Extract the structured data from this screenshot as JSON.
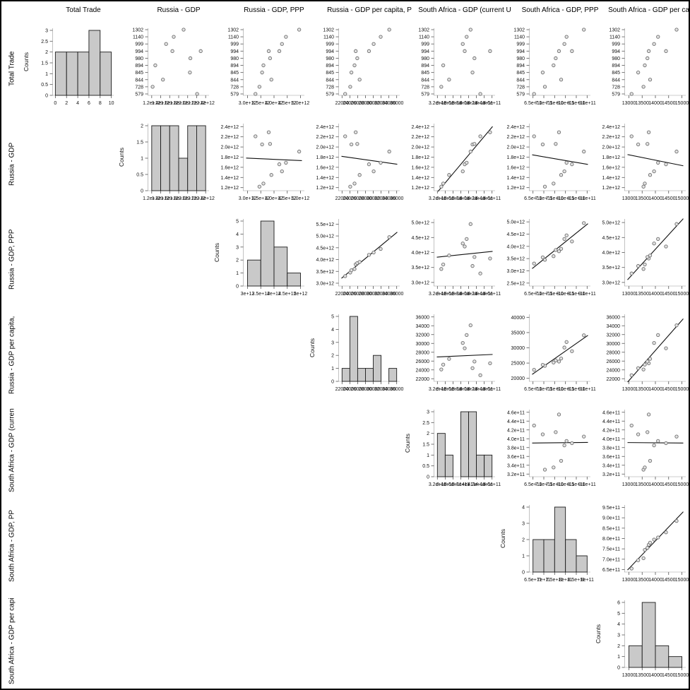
{
  "chart_data": {
    "type": "scatter_matrix",
    "counts_label": "Counts",
    "background": "#ffffff",
    "border_color": "#000000",
    "layout": {
      "margin_left": 28,
      "margin_top": 28,
      "cell_size": 135,
      "grid": "7x7 upper triangle, histograms on diagonal"
    },
    "variables": [
      {
        "key": "total_trade",
        "title": "Total Trade",
        "row_label": "Total Trade"
      },
      {
        "key": "ru_gdp",
        "title": "Russia - GDP",
        "row_label": "Russia - GDP"
      },
      {
        "key": "ru_gdp_ppp",
        "title": "Russia - GDP, PPP",
        "row_label": "Russia - GDP, PPP"
      },
      {
        "key": "ru_gdp_pc",
        "title": "Russia - GDP per capita, P",
        "row_label": "Russia - GDP per capita,"
      },
      {
        "key": "sa_gdp",
        "title": "South Africa - GDP (current U",
        "row_label": "South Africa - GDP (curren"
      },
      {
        "key": "sa_gdp_ppp",
        "title": "South Africa - GDP, PPP",
        "row_label": "South Africa - GDP, PP"
      },
      {
        "key": "sa_gdp_pc",
        "title": "South Africa - GDP per capita,",
        "row_label": "South Africa - GDP per capi"
      }
    ],
    "row1_category_ticks": [
      "1302",
      "1140",
      "999",
      "994",
      "980",
      "894",
      "845",
      "844",
      "728",
      "579"
    ],
    "observations": {
      "total_trade": [
        579,
        728,
        845,
        894,
        994,
        980,
        844,
        994,
        999,
        1140,
        1302
      ],
      "ru_gdp": [
        2210000000000.0,
        1220000000000.0,
        2050000000000.0,
        1280000000000.0,
        2290000000000.0,
        2060000000000.0,
        1450000000000.0,
        1660000000000.0,
        1520000000000.0,
        1690000000000.0,
        1910000000000.0
      ],
      "ru_gdp_ppp": [
        3300000000000.0,
        3450000000000.0,
        3550000000000.0,
        3600000000000.0,
        3800000000000.0,
        3850000000000.0,
        3900000000000.0,
        4200000000000.0,
        4300000000000.0,
        4450000000000.0,
        4950000000000.0
      ],
      "ru_gdp_pc": [
        22800,
        24100,
        24400,
        25200,
        25500,
        25900,
        26500,
        28900,
        30100,
        31900,
        34100
      ],
      "sa_gdp": [
        430000000000.0,
        330000000000.0,
        410000000000.0,
        335000000000.0,
        455000000000.0,
        415000000000.0,
        350000000000.0,
        390000000000.0,
        385000000000.0,
        395000000000.0,
        405000000000.0
      ],
      "sa_gdp_ppp": [
        655000000000.0,
        705000000000.0,
        695000000000.0,
        745000000000.0,
        770000000000.0,
        755000000000.0,
        780000000000.0,
        830000000000.0,
        795000000000.0,
        805000000000.0,
        885000000000.0
      ],
      "sa_gdp_pc": [
        13100,
        13550,
        13350,
        13600,
        13750,
        13700,
        13800,
        14400,
        13950,
        14100,
        14800
      ]
    },
    "axes": {
      "total_trade": {
        "x_range": [
          -0.3,
          10.3
        ],
        "x_tick_values": [
          0,
          2,
          4,
          6,
          8,
          10
        ],
        "x_tick_labels_scatter": [
          "0",
          "2",
          "4",
          "6",
          "8",
          "10"
        ],
        "x_tick_labels_hist": [
          "0",
          "2",
          "4",
          "6",
          "8",
          "10"
        ]
      },
      "ru_gdp": {
        "x_range": [
          1140000000000.0,
          2460000000000.0
        ],
        "x_tick_values": [
          1200000000000.0,
          1400000000000.0,
          1600000000000.0,
          1800000000000.0,
          2000000000000.0,
          2200000000000.0,
          2400000000000.0
        ],
        "x_tick_labels_scatter": [
          "1.2e+12",
          "1.4e+12",
          "1.6e+12",
          "1.8e+12",
          "2.0e+12",
          "2.2e+12",
          "2.4e+12"
        ],
        "x_tick_labels_hist": [
          "1.2e+12",
          "1.4e+12",
          "1.6e+12",
          "1.8e+12",
          "2.0e+12",
          "2.2e+12",
          "2.4e+12"
        ]
      },
      "ru_gdp_ppp": {
        "x_range": [
          2880000000000.0,
          5120000000000.0
        ],
        "x_tick_values": [
          3000000000000.0,
          3500000000000.0,
          4000000000000.0,
          4500000000000.0,
          5000000000000.0
        ],
        "x_tick_labels_scatter": [
          "3.0e+12",
          "3.5e+12",
          "4.0e+12",
          "4.5e+12",
          "5.0e+12"
        ],
        "x_tick_labels_hist": [
          "3e+12",
          "3.5e+12",
          "4e+12",
          "4.5e+12",
          "5e+12"
        ]
      },
      "ru_gdp_pc": {
        "x_range": [
          21400,
          36600
        ],
        "x_tick_values": [
          22000,
          24000,
          26000,
          28000,
          30000,
          32000,
          34000,
          36000
        ],
        "x_tick_labels_scatter": [
          "22000",
          "24000",
          "26000",
          "28000",
          "30000",
          "32000",
          "34000",
          "36000"
        ],
        "x_tick_labels_hist": [
          "22000",
          "24000",
          "26000",
          "28000",
          "30000",
          "32000",
          "34000",
          "36000"
        ]
      },
      "sa_gdp": {
        "x_range": [
          314000000000.0,
          466000000000.0
        ],
        "x_tick_values": [
          320000000000.0,
          340000000000.0,
          360000000000.0,
          380000000000.0,
          400000000000.0,
          420000000000.0,
          440000000000.0,
          460000000000.0
        ],
        "x_tick_labels_scatter": [
          "3.2e+11",
          "3.4e+11",
          "3.6e+11",
          "3.8e+11",
          "4.0e+11",
          "4.2e+11",
          "4.4e+11",
          "4.6e+11"
        ],
        "x_tick_labels_hist": [
          "3.2e+11",
          "3.4e+11",
          "3.6e+11",
          "3.8e+11",
          "4e+11",
          "4.2e+11",
          "4.4e+11",
          "4.6e+11"
        ]
      },
      "sa_gdp_ppp": {
        "x_range": [
          638000000000.0,
          912000000000.0
        ],
        "x_tick_values": [
          650000000000.0,
          700000000000.0,
          750000000000.0,
          800000000000.0,
          850000000000.0,
          900000000000.0
        ],
        "x_tick_labels_scatter": [
          "6.5e+11",
          "7.0e+11",
          "7.5e+11",
          "8.0e+11",
          "8.5e+11",
          "9.0e+11"
        ],
        "x_tick_labels_hist": [
          "6.5e+11",
          "7e+11",
          "7.5e+11",
          "8e+11",
          "8.5e+11",
          "9e+11"
        ]
      },
      "sa_gdp_pc": {
        "x_range": [
          12880,
          15120
        ],
        "x_tick_values": [
          13000,
          13500,
          14000,
          14500,
          15000
        ],
        "x_tick_labels_scatter": [
          "13000",
          "13500",
          "14000",
          "14500",
          "15000"
        ],
        "x_tick_labels_hist": [
          "13000",
          "13500",
          "14000",
          "14500",
          "15000"
        ]
      }
    },
    "row_y_axes": {
      "2": {
        "range": [
          1140000000000.0,
          2460000000000.0
        ],
        "tick_values": [
          2400000000000.0,
          2200000000000.0,
          2000000000000.0,
          1800000000000.0,
          1600000000000.0,
          1400000000000.0,
          1200000000000.0
        ],
        "tick_labels": [
          "2.4e+12",
          "2.2e+12",
          "2.0e+12",
          "1.8e+12",
          "1.6e+12",
          "1.4e+12",
          "1.2e+12"
        ]
      },
      "3": {
        "range": [
          2880000000000.0,
          5120000000000.0
        ],
        "tick_values": [
          5000000000000.0,
          4500000000000.0,
          4000000000000.0,
          3500000000000.0,
          3000000000000.0
        ],
        "tick_labels": [
          "5.0e+12",
          "4.5e+12",
          "4.0e+12",
          "3.5e+12",
          "3.0e+12"
        ]
      },
      "4": {
        "range": [
          21400,
          36600
        ],
        "tick_values": [
          36000,
          34000,
          32000,
          30000,
          28000,
          26000,
          24000,
          22000
        ],
        "tick_labels": [
          "36000",
          "34000",
          "32000",
          "30000",
          "28000",
          "26000",
          "24000",
          "22000"
        ]
      },
      "5": {
        "range": [
          314000000000.0,
          466000000000.0
        ],
        "tick_values": [
          460000000000.0,
          440000000000.0,
          420000000000.0,
          400000000000.0,
          380000000000.0,
          360000000000.0,
          340000000000.0,
          320000000000.0
        ],
        "tick_labels": [
          "4.6e+11",
          "4.4e+11",
          "4.2e+11",
          "4.0e+11",
          "3.8e+11",
          "3.6e+11",
          "3.4e+11",
          "3.2e+11"
        ]
      },
      "6": {
        "range": [
          638000000000.0,
          962000000000.0
        ],
        "tick_values": [
          950000000000.0,
          900000000000.0,
          850000000000.0,
          800000000000.0,
          750000000000.0,
          700000000000.0,
          650000000000.0
        ],
        "tick_labels": [
          "9.5e+11",
          "9.0e+11",
          "8.5e+11",
          "8.0e+11",
          "7.5e+11",
          "7.0e+11",
          "6.5e+11"
        ]
      }
    },
    "y_axis_overrides": {
      "3,4": {
        "range": [
          2880000000000.0,
          5720000000000.0
        ],
        "tick_values": [
          5500000000000.0,
          5000000000000.0,
          4500000000000.0,
          4000000000000.0,
          3500000000000.0,
          3000000000000.0
        ],
        "tick_labels": [
          "5.5e+12",
          "5.0e+12",
          "4.5e+12",
          "4.0e+12",
          "3.5e+12",
          "3.0e+12"
        ]
      },
      "3,6": {
        "range": [
          2380000000000.0,
          5120000000000.0
        ],
        "tick_values": [
          5000000000000.0,
          4500000000000.0,
          4000000000000.0,
          3500000000000.0,
          3000000000000.0,
          2500000000000.0
        ],
        "tick_labels": [
          "5.0e+12",
          "4.5e+12",
          "4.0e+12",
          "3.5e+12",
          "3.0e+12",
          "2.5e+12"
        ]
      },
      "4,6": {
        "range": [
          19000,
          41000
        ],
        "tick_values": [
          40000,
          35000,
          30000,
          25000,
          20000
        ],
        "tick_labels": [
          "40000",
          "35000",
          "30000",
          "25000",
          "20000"
        ]
      }
    },
    "histograms": {
      "total_trade": {
        "bin_start": 0,
        "bin_width": 2,
        "counts": [
          2,
          2,
          2,
          3,
          2
        ],
        "y_max": 3,
        "y_tick_values": [
          3,
          2.5,
          2,
          1.5,
          1,
          0.5,
          0
        ],
        "y_tick_labels": [
          "3",
          "2.5",
          "2",
          "1.5",
          "1",
          "0.5",
          "0"
        ]
      },
      "ru_gdp": {
        "bin_start": 1200000000000.0,
        "bin_width": 200000000000.0,
        "counts": [
          2,
          2,
          2,
          1,
          2,
          2
        ],
        "y_max": 2,
        "y_tick_values": [
          2,
          1.5,
          1,
          0.5,
          0
        ],
        "y_tick_labels": [
          "2",
          "1.5",
          "1",
          "0.5",
          "0"
        ]
      },
      "ru_gdp_ppp": {
        "bin_start": 3000000000000.0,
        "bin_width": 500000000000.0,
        "counts": [
          2,
          5,
          3,
          1
        ],
        "y_max": 5,
        "y_tick_values": [
          5,
          4,
          3,
          2,
          1,
          0
        ],
        "y_tick_labels": [
          "5",
          "4",
          "3",
          "2",
          "1",
          "0"
        ]
      },
      "ru_gdp_pc": {
        "bin_start": 22000,
        "bin_width": 2000,
        "counts": [
          1,
          5,
          1,
          1,
          2,
          0,
          1
        ],
        "y_max": 5,
        "y_tick_values": [
          5,
          4,
          3,
          2,
          1,
          0
        ],
        "y_tick_labels": [
          "5",
          "4",
          "3",
          "2",
          "1",
          "0"
        ]
      },
      "sa_gdp": {
        "bin_start": 320000000000.0,
        "bin_width": 20000000000.0,
        "counts": [
          2,
          1,
          0,
          3,
          3,
          1,
          1
        ],
        "y_max": 3,
        "y_tick_values": [
          3,
          2.5,
          2,
          1.5,
          1,
          0.5,
          0
        ],
        "y_tick_labels": [
          "3",
          "2.5",
          "2",
          "1.5",
          "1",
          "0.5",
          "0"
        ]
      },
      "sa_gdp_ppp": {
        "bin_start": 650000000000.0,
        "bin_width": 50000000000.0,
        "counts": [
          2,
          2,
          4,
          2,
          1
        ],
        "y_max": 4,
        "y_tick_values": [
          4,
          3,
          2,
          1,
          0
        ],
        "y_tick_labels": [
          "4",
          "3",
          "2",
          "1",
          "0"
        ]
      },
      "sa_gdp_pc": {
        "bin_start": 13000,
        "bin_width": 500,
        "counts": [
          2,
          6,
          2,
          1
        ],
        "y_max": 6,
        "y_tick_values": [
          6,
          5,
          4,
          3,
          2,
          1,
          0
        ],
        "y_tick_labels": [
          "6",
          "5",
          "4",
          "3",
          "2",
          "1",
          "0"
        ]
      }
    },
    "style": {
      "bar_fill": "#c9c9c9",
      "bar_stroke": "#1b1b1b",
      "point_fill": "#e3e3e3",
      "point_stroke": "#6f6f6f",
      "fit_line_color": "#0f0f0f",
      "tick_color": "#555555",
      "spine_color": "#9a9a9a",
      "text_color": "#111111"
    }
  }
}
